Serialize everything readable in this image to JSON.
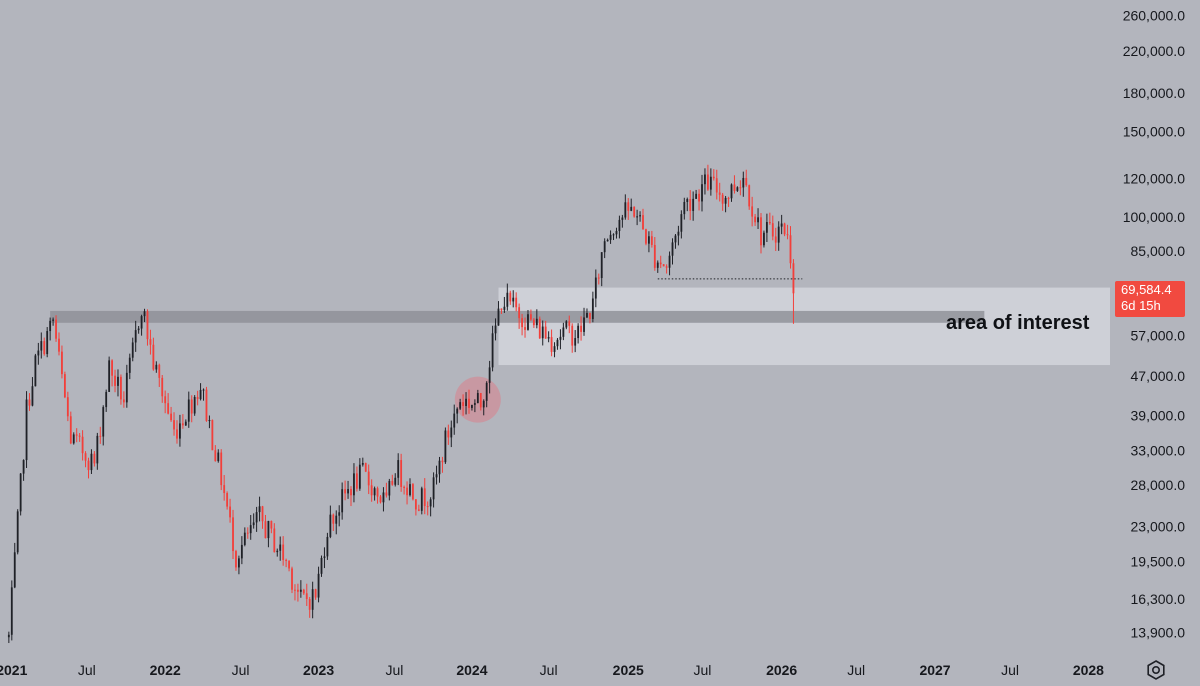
{
  "chart_data": {
    "type": "candlestick",
    "title": "",
    "xlabel": "",
    "ylabel": "",
    "y_scale": "log",
    "ylim": [
      12500,
      280000
    ],
    "xlim": [
      "2020-12-07",
      "2028-02-28"
    ],
    "grid": false,
    "colors": {
      "up": "#1f2127",
      "down": "#f23f3a",
      "background": "#b3b5bd",
      "zone": "#e4e6ec",
      "band": "#8d8f96"
    },
    "y_ticks": [
      "260,000.0",
      "220,000.0",
      "180,000.0",
      "150,000.0",
      "120,000.0",
      "100,000.0",
      "85,000.0",
      "69,584.4",
      "57,000.0",
      "47,000.0",
      "39,000.0",
      "33,000.0",
      "28,000.0",
      "23,000.0",
      "19,500.0",
      "16,300.0",
      "13,900.0"
    ],
    "x_ticks": [
      {
        "label": "2021",
        "date": "2021-01-04",
        "bold": true
      },
      {
        "label": "Jul",
        "date": "2021-07-01",
        "bold": false
      },
      {
        "label": "2022",
        "date": "2022-01-03",
        "bold": true
      },
      {
        "label": "Jul",
        "date": "2022-07-01",
        "bold": false
      },
      {
        "label": "2023",
        "date": "2023-01-02",
        "bold": true
      },
      {
        "label": "Jul",
        "date": "2023-07-01",
        "bold": false
      },
      {
        "label": "2024",
        "date": "2024-01-01",
        "bold": true
      },
      {
        "label": "Jul",
        "date": "2024-07-01",
        "bold": false
      },
      {
        "label": "2025",
        "date": "2025-01-06",
        "bold": true
      },
      {
        "label": "Jul",
        "date": "2025-07-01",
        "bold": false
      },
      {
        "label": "2026",
        "date": "2026-01-05",
        "bold": true
      },
      {
        "label": "Jul",
        "date": "2026-07-01",
        "bold": false
      },
      {
        "label": "2027",
        "date": "2027-01-04",
        "bold": true
      },
      {
        "label": "Jul",
        "date": "2027-07-01",
        "bold": false
      },
      {
        "label": "2028",
        "date": "2028-01-03",
        "bold": true
      }
    ],
    "anchors": [
      [
        "2020-12-28",
        13600
      ],
      [
        "2021-02-08",
        40000
      ],
      [
        "2021-03-01",
        50000
      ],
      [
        "2021-04-12",
        61000
      ],
      [
        "2021-05-24",
        35000
      ],
      [
        "2021-06-21",
        33000
      ],
      [
        "2021-07-19",
        31000
      ],
      [
        "2021-08-23",
        49000
      ],
      [
        "2021-09-27",
        42000
      ],
      [
        "2021-11-08",
        66000
      ],
      [
        "2021-12-06",
        50000
      ],
      [
        "2022-01-24",
        36000
      ],
      [
        "2022-03-28",
        45000
      ],
      [
        "2022-05-16",
        29000
      ],
      [
        "2022-06-20",
        20000
      ],
      [
        "2022-08-15",
        24000
      ],
      [
        "2022-10-17",
        19500
      ],
      [
        "2022-11-21",
        16200
      ],
      [
        "2022-12-26",
        16600
      ],
      [
        "2023-01-23",
        23000
      ],
      [
        "2023-03-20",
        28000
      ],
      [
        "2023-04-17",
        29500
      ],
      [
        "2023-06-12",
        25500
      ],
      [
        "2023-07-03",
        30500
      ],
      [
        "2023-08-28",
        26000
      ],
      [
        "2023-10-02",
        27500
      ],
      [
        "2023-10-30",
        34500
      ],
      [
        "2023-12-04",
        42000
      ],
      [
        "2024-01-22",
        41000
      ],
      [
        "2024-02-12",
        51000
      ],
      [
        "2024-03-11",
        68000
      ],
      [
        "2024-05-06",
        62000
      ],
      [
        "2024-07-08",
        56000
      ],
      [
        "2024-08-05",
        58000
      ],
      [
        "2024-09-09",
        57500
      ],
      [
        "2024-10-14",
        66000
      ],
      [
        "2024-11-11",
        90000
      ],
      [
        "2024-12-16",
        100000
      ],
      [
        "2025-01-20",
        104000
      ],
      [
        "2025-03-10",
        83000
      ],
      [
        "2025-04-07",
        79000
      ],
      [
        "2025-05-19",
        106000
      ],
      [
        "2025-07-14",
        118000
      ],
      [
        "2025-08-25",
        110000
      ],
      [
        "2025-10-06",
        122000
      ],
      [
        "2025-11-17",
        92000
      ],
      [
        "2026-01-12",
        95000
      ],
      [
        "2026-01-26",
        84000
      ],
      [
        "2026-02-02",
        69584
      ]
    ],
    "horizontal_band": {
      "date_start": "2021-04-05",
      "date_end": "2027-05-01",
      "y_low": 60500,
      "y_high": 64000
    },
    "zone": {
      "label": "area of interest",
      "date_start": "2024-03-04",
      "y_low": 49500,
      "y_high": 71500
    },
    "dotted_level": {
      "value": 74500,
      "date_start": "2025-03-17",
      "date_end": "2026-02-23"
    },
    "highlight_circle": {
      "date": "2024-01-15",
      "value": 42000
    },
    "last_price": {
      "value": "69,584.4",
      "countdown": "6d 15h"
    }
  },
  "settings_icon": "gear-icon"
}
